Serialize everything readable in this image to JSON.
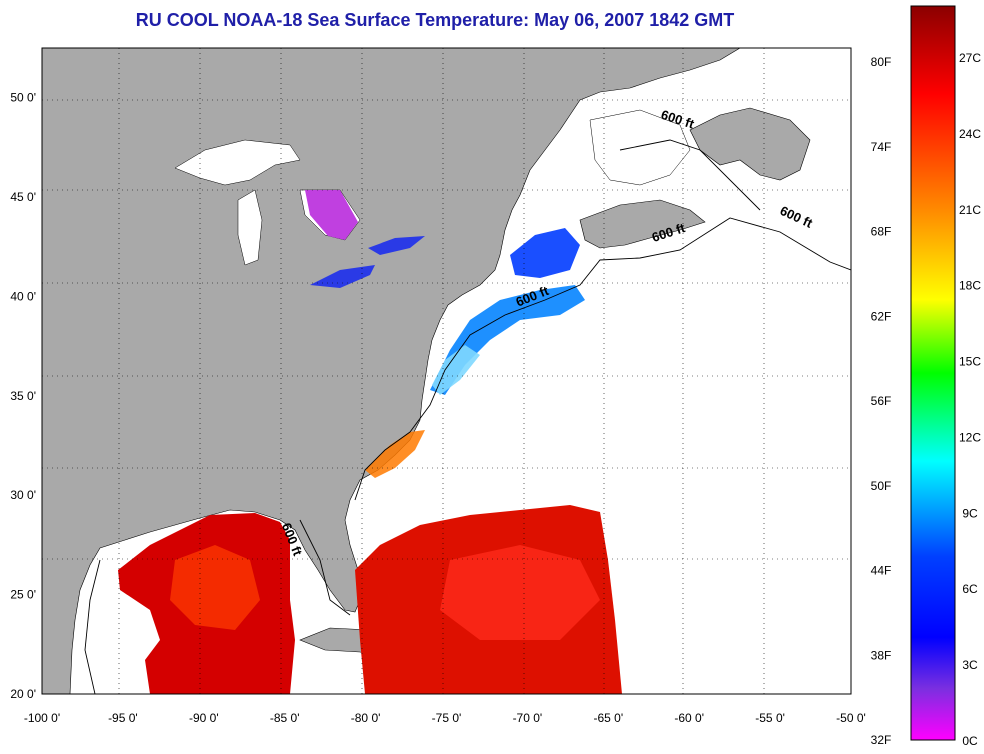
{
  "title": "RU COOL  NOAA-18  Sea Surface Temperature:  May 06, 2007 1842 GMT",
  "map": {
    "lon_range": [
      -100,
      -50
    ],
    "lat_range": [
      20,
      52.5
    ],
    "x_ticks": [
      "-100 0'",
      "-95 0'",
      "-90 0'",
      "-85 0'",
      "-80 0'",
      "-75 0'",
      "-70 0'",
      "-65 0'",
      "-60 0'",
      "-55 0'",
      "-50 0'"
    ],
    "x_tick_values": [
      -100,
      -95,
      -90,
      -85,
      -80,
      -75,
      -70,
      -65,
      -60,
      -55,
      -50
    ],
    "y_ticks": [
      "50 0'",
      "45 0'",
      "40 0'",
      "35 0'",
      "30 0'",
      "25 0'",
      "20 0'"
    ],
    "y_tick_values": [
      50,
      45,
      40,
      35,
      30,
      25,
      20
    ],
    "grid": true,
    "land_color": "#a9a9a9",
    "ocean_color": "#ffffff",
    "contour_labels": [
      {
        "text": "600 ft",
        "lon": -60.8,
        "lat": 48.7,
        "angle": 18
      },
      {
        "text": "600 ft",
        "lon": -53.5,
        "lat": 43.8,
        "angle": 25
      },
      {
        "text": "600 ft",
        "lon": -61.2,
        "lat": 43.0,
        "angle": -18
      },
      {
        "text": "600 ft",
        "lon": -69.6,
        "lat": 39.8,
        "angle": -22
      },
      {
        "text": "600 ft",
        "lon": -84.8,
        "lat": 27.7,
        "angle": 68
      }
    ]
  },
  "colorbar": {
    "fahrenheit_labels": [
      "80F",
      "74F",
      "68F",
      "62F",
      "56F",
      "50F",
      "44F",
      "38F",
      "32F"
    ],
    "celsius_labels": [
      "27C",
      "24C",
      "21C",
      "18C",
      "15C",
      "12C",
      "9C",
      "6C",
      "3C",
      "0C"
    ],
    "colors": [
      "#8b0000",
      "#ff0000",
      "#ff8c00",
      "#ffff00",
      "#00ff00",
      "#00ffff",
      "#0000ff",
      "#8a2be2",
      "#ff00ff"
    ]
  }
}
